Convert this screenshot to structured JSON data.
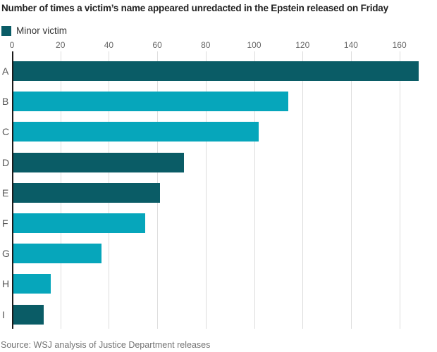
{
  "chart_data": {
    "type": "bar",
    "orientation": "horizontal",
    "title": "Number of times a victim’s name appeared unredacted in the Epstein released on Friday",
    "categories": [
      "A",
      "B",
      "C",
      "D",
      "E",
      "F",
      "G",
      "H",
      "I"
    ],
    "values": [
      168,
      114,
      102,
      71,
      61,
      55,
      37,
      16,
      13
    ],
    "bar_is_minor_victim": [
      true,
      false,
      false,
      true,
      true,
      false,
      false,
      false,
      true
    ],
    "colors": {
      "minor_victim": "#0a5c66",
      "other": "#06a6bb",
      "gridline": "#dddddd",
      "axis_line": "#1a1a1a"
    },
    "xlim": [
      0,
      170
    ],
    "xticks": [
      0,
      20,
      40,
      60,
      80,
      100,
      120,
      140,
      160
    ],
    "grid": "vertical",
    "legend": [
      {
        "label": "Minor victim",
        "color": "#0a5c66"
      }
    ],
    "source": "Source: WSJ analysis of Justice Department releases"
  }
}
